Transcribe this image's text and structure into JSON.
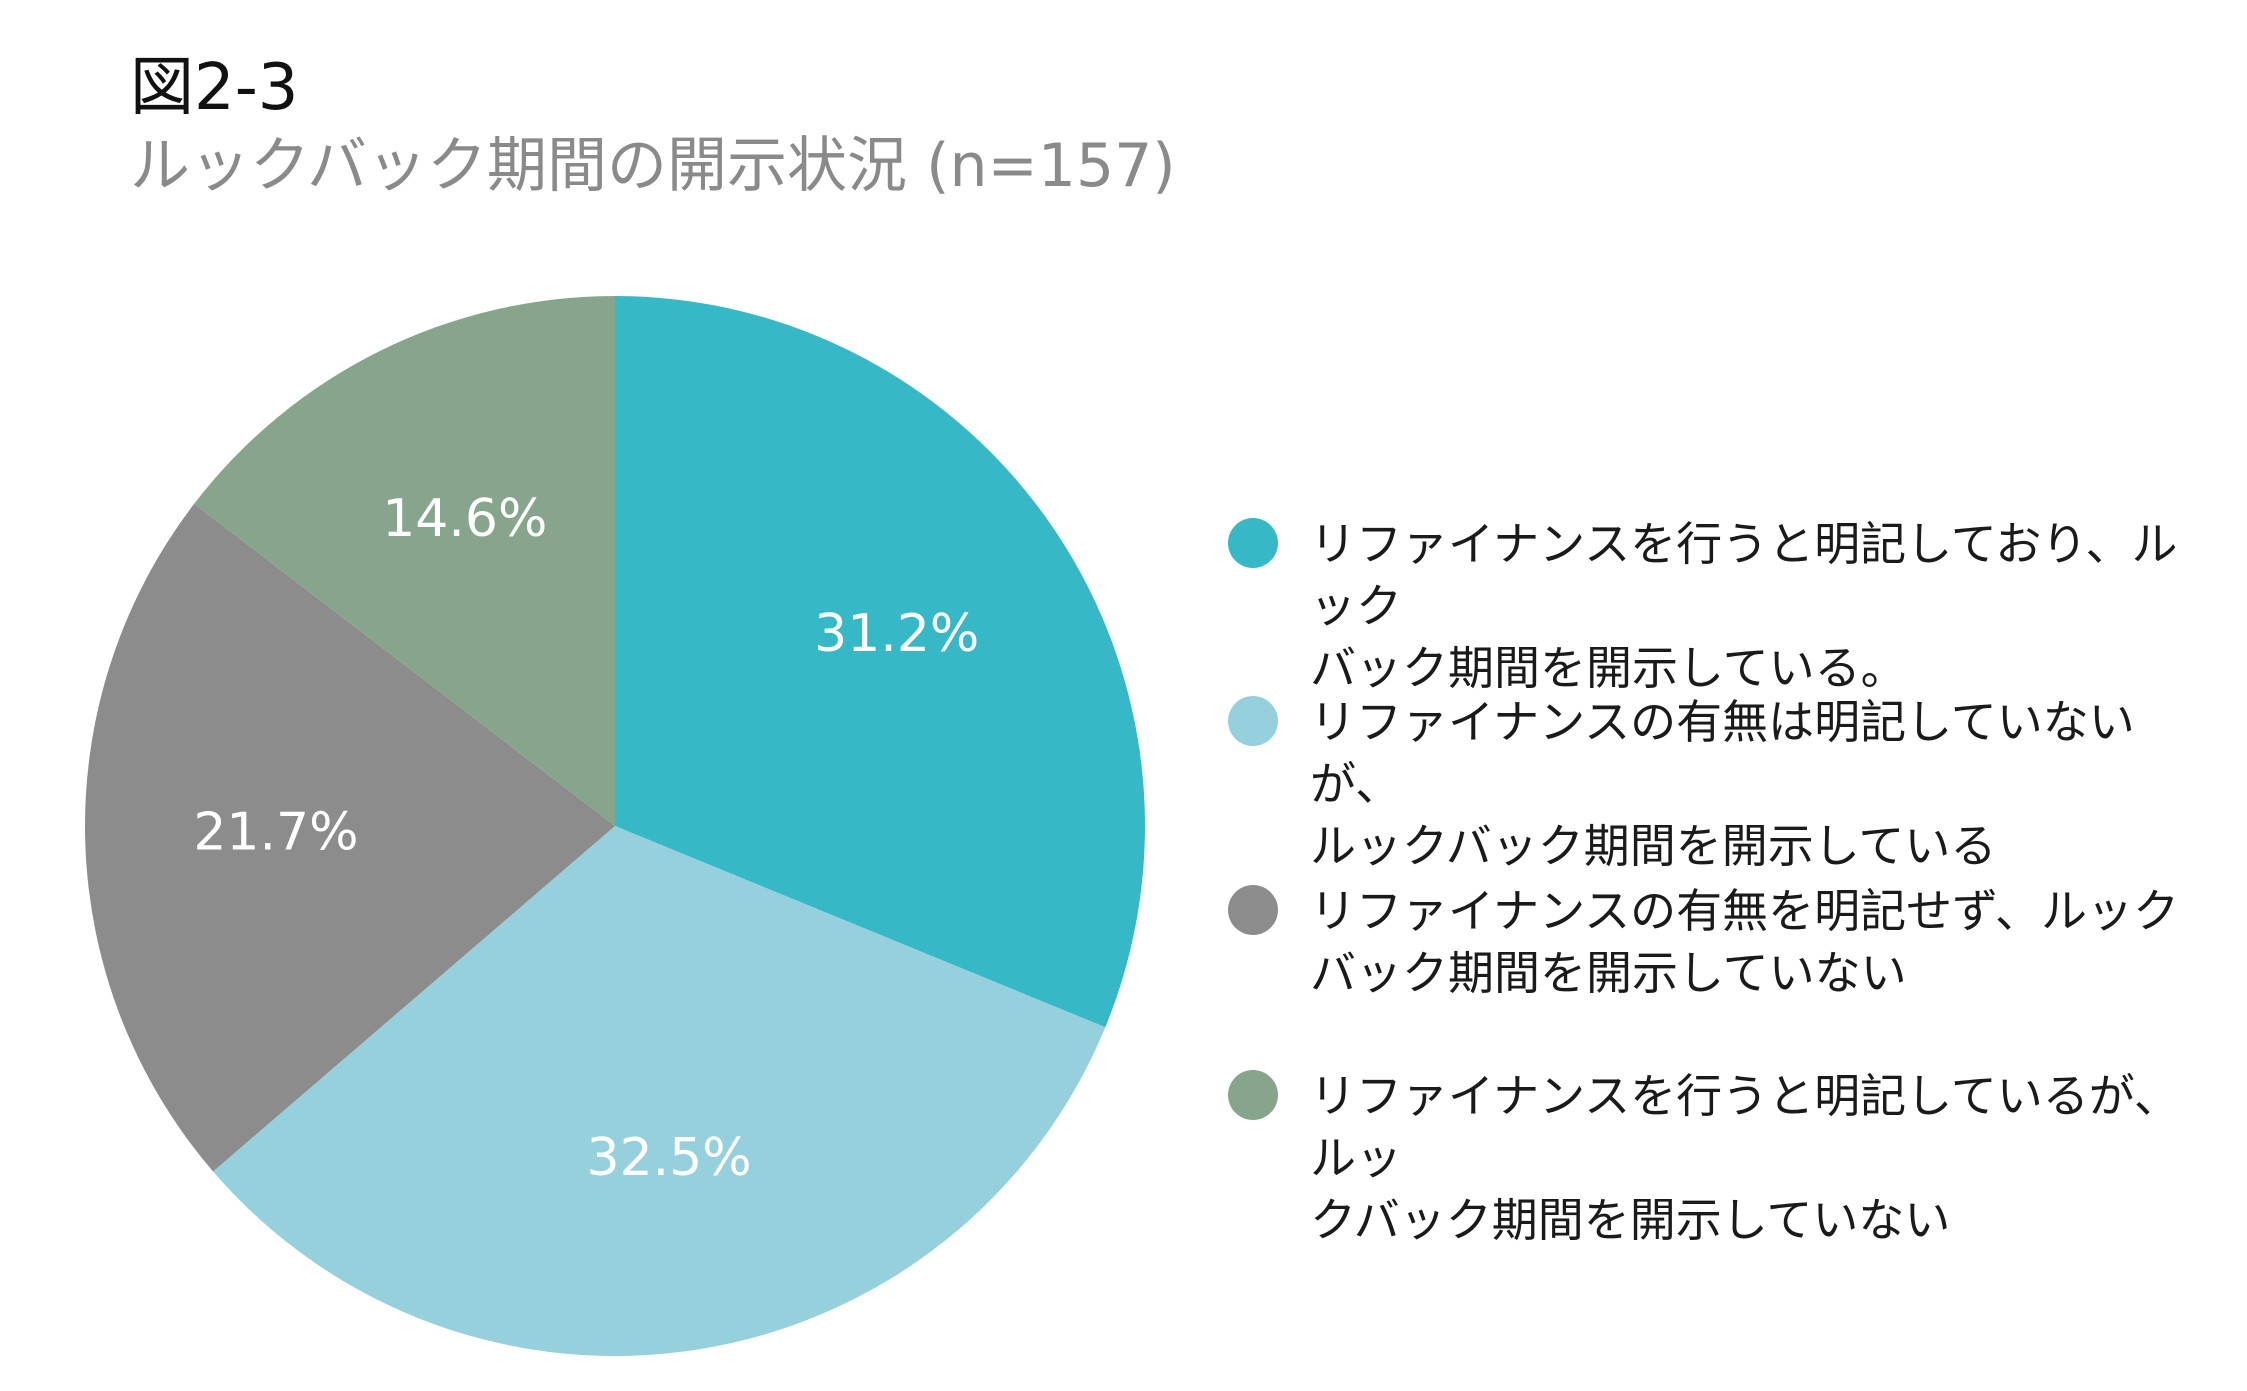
{
  "figure": {
    "number": "図2-3",
    "title": "ルックバック期間の開示状況 (n=157)"
  },
  "chart_data": {
    "type": "pie",
    "title": "ルックバック期間の開示状況 (n=157)",
    "n": 157,
    "start_angle_deg": 0,
    "direction": "clockwise",
    "slices": [
      {
        "label": "リファイナンスを行うと明記しており、ルックバック期間を開示している。",
        "value": 31.2,
        "display": "31.2%",
        "color": "#36b8c6"
      },
      {
        "label": "リファイナンスの有無は明記していないが、ルックバック期間を開示している",
        "value": 32.5,
        "display": "32.5%",
        "color": "#96d0dc"
      },
      {
        "label": "リファイナンスの有無を明記せず、ルックバック期間を開示していない",
        "value": 21.7,
        "display": "21.7%",
        "color": "#8c8c8c"
      },
      {
        "label": "リファイナンスを行うと明記しているが、ルックバック期間を開示していない",
        "value": 14.6,
        "display": "14.6%",
        "color": "#86a58c"
      }
    ],
    "legend_position": "right"
  },
  "legend": {
    "items": [
      {
        "lines": [
          "リファイナンスを行うと明記しており、ルック",
          "バック期間を開示している。"
        ],
        "color": "#36b8c6"
      },
      {
        "lines": [
          "リファイナンスの有無は明記していないが、",
          "ルックバック期間を開示している"
        ],
        "color": "#96d0dc"
      },
      {
        "lines": [
          "リファイナンスの有無を明記せず、ルック",
          "バック期間を開示していない"
        ],
        "color": "#8c8c8c"
      },
      {
        "lines": [
          "リファイナンスを行うと明記しているが、ルッ",
          "クバック期間を開示していない"
        ],
        "color": "#86a58c"
      }
    ]
  }
}
